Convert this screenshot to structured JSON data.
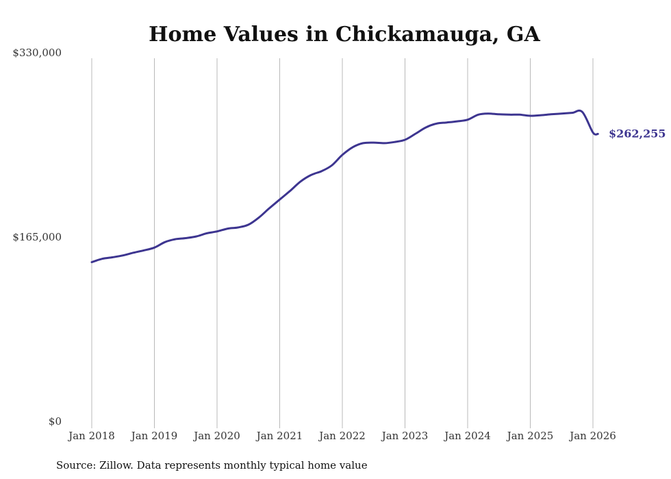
{
  "chart_data": {
    "type": "line",
    "title": "Home Values in Chickamauga, GA",
    "xlabel": "",
    "ylabel": "",
    "ylim": [
      0,
      330000
    ],
    "y_ticks": [
      {
        "value": 0,
        "label": "$0"
      },
      {
        "value": 165000,
        "label": "$165,000"
      },
      {
        "value": 330000,
        "label": "$330,000"
      }
    ],
    "x_ticks": [
      {
        "value": 2018.0,
        "label": "Jan 2018"
      },
      {
        "value": 2019.0,
        "label": "Jan 2019"
      },
      {
        "value": 2020.0,
        "label": "Jan 2020"
      },
      {
        "value": 2021.0,
        "label": "Jan 2021"
      },
      {
        "value": 2022.0,
        "label": "Jan 2022"
      },
      {
        "value": 2023.0,
        "label": "Jan 2023"
      },
      {
        "value": 2024.0,
        "label": "Jan 2024"
      },
      {
        "value": 2025.0,
        "label": "Jan 2025"
      },
      {
        "value": 2026.0,
        "label": "Jan 2026"
      }
    ],
    "xlim": [
      2018.0,
      2026.08
    ],
    "grid": "vertical",
    "series": [
      {
        "name": "Typical home value",
        "color": "#3d3590",
        "end_label": "$262,255",
        "x": [
          2018.0,
          2018.17,
          2018.33,
          2018.5,
          2018.67,
          2018.83,
          2019.0,
          2019.17,
          2019.33,
          2019.5,
          2019.67,
          2019.83,
          2020.0,
          2020.17,
          2020.33,
          2020.5,
          2020.67,
          2020.83,
          2021.0,
          2021.17,
          2021.33,
          2021.5,
          2021.67,
          2021.83,
          2022.0,
          2022.17,
          2022.33,
          2022.5,
          2022.67,
          2022.83,
          2023.0,
          2023.17,
          2023.33,
          2023.5,
          2023.67,
          2023.83,
          2024.0,
          2024.17,
          2024.33,
          2024.5,
          2024.67,
          2024.83,
          2025.0,
          2025.17,
          2025.33,
          2025.5,
          2025.67,
          2025.83,
          2026.0,
          2026.08
        ],
        "values": [
          147500,
          150500,
          151800,
          153500,
          156000,
          158000,
          160500,
          165500,
          168000,
          169000,
          170500,
          173200,
          175000,
          177500,
          178500,
          181000,
          187500,
          195500,
          203500,
          211500,
          219500,
          225500,
          229000,
          234000,
          243500,
          250500,
          254000,
          254500,
          254000,
          255000,
          257000,
          262500,
          268000,
          271500,
          272500,
          273500,
          275000,
          279500,
          280500,
          279800,
          279500,
          279500,
          278500,
          279000,
          279800,
          280500,
          281200,
          282000,
          263500,
          262255
        ]
      }
    ]
  },
  "footer": {
    "source": "Source: Zillow. Data represents monthly typical home value"
  }
}
